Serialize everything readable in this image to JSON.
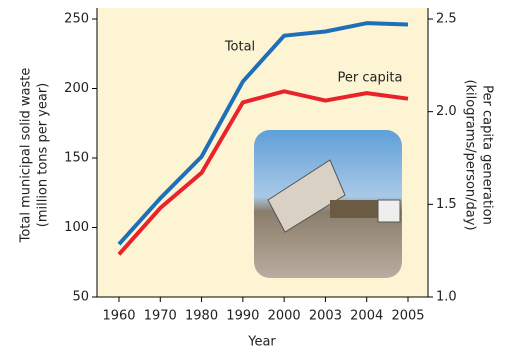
{
  "chart_data": {
    "type": "line",
    "categories": [
      "1960",
      "1970",
      "1980",
      "1990",
      "2000",
      "2003",
      "2004",
      "2005"
    ],
    "xlabel": "Year",
    "ylabel": [
      "Total municipal solid waste",
      "(million tons per year)"
    ],
    "y2label": [
      "Per capita generation",
      "(kilograms/person/day)"
    ],
    "ylim": [
      50,
      250
    ],
    "yticks": [
      50,
      100,
      150,
      200,
      250
    ],
    "y2lim": [
      1,
      2.5
    ],
    "y2ticks": [
      {
        "value": 1,
        "label": "1.0"
      },
      1.5,
      {
        "value": 2,
        "label": "2.0"
      },
      2.5
    ],
    "series": [
      {
        "name": "Total",
        "color": "#1f6fb8",
        "values": [
          88,
          121,
          151,
          205,
          238,
          241,
          247,
          246
        ]
      },
      {
        "name": "Per capita",
        "color": "#e8232a",
        "axis": "y2",
        "values": [
          1.23,
          1.48,
          1.67,
          2.05,
          2.11,
          2.06,
          2.1,
          2.07
        ]
      }
    ]
  }
}
